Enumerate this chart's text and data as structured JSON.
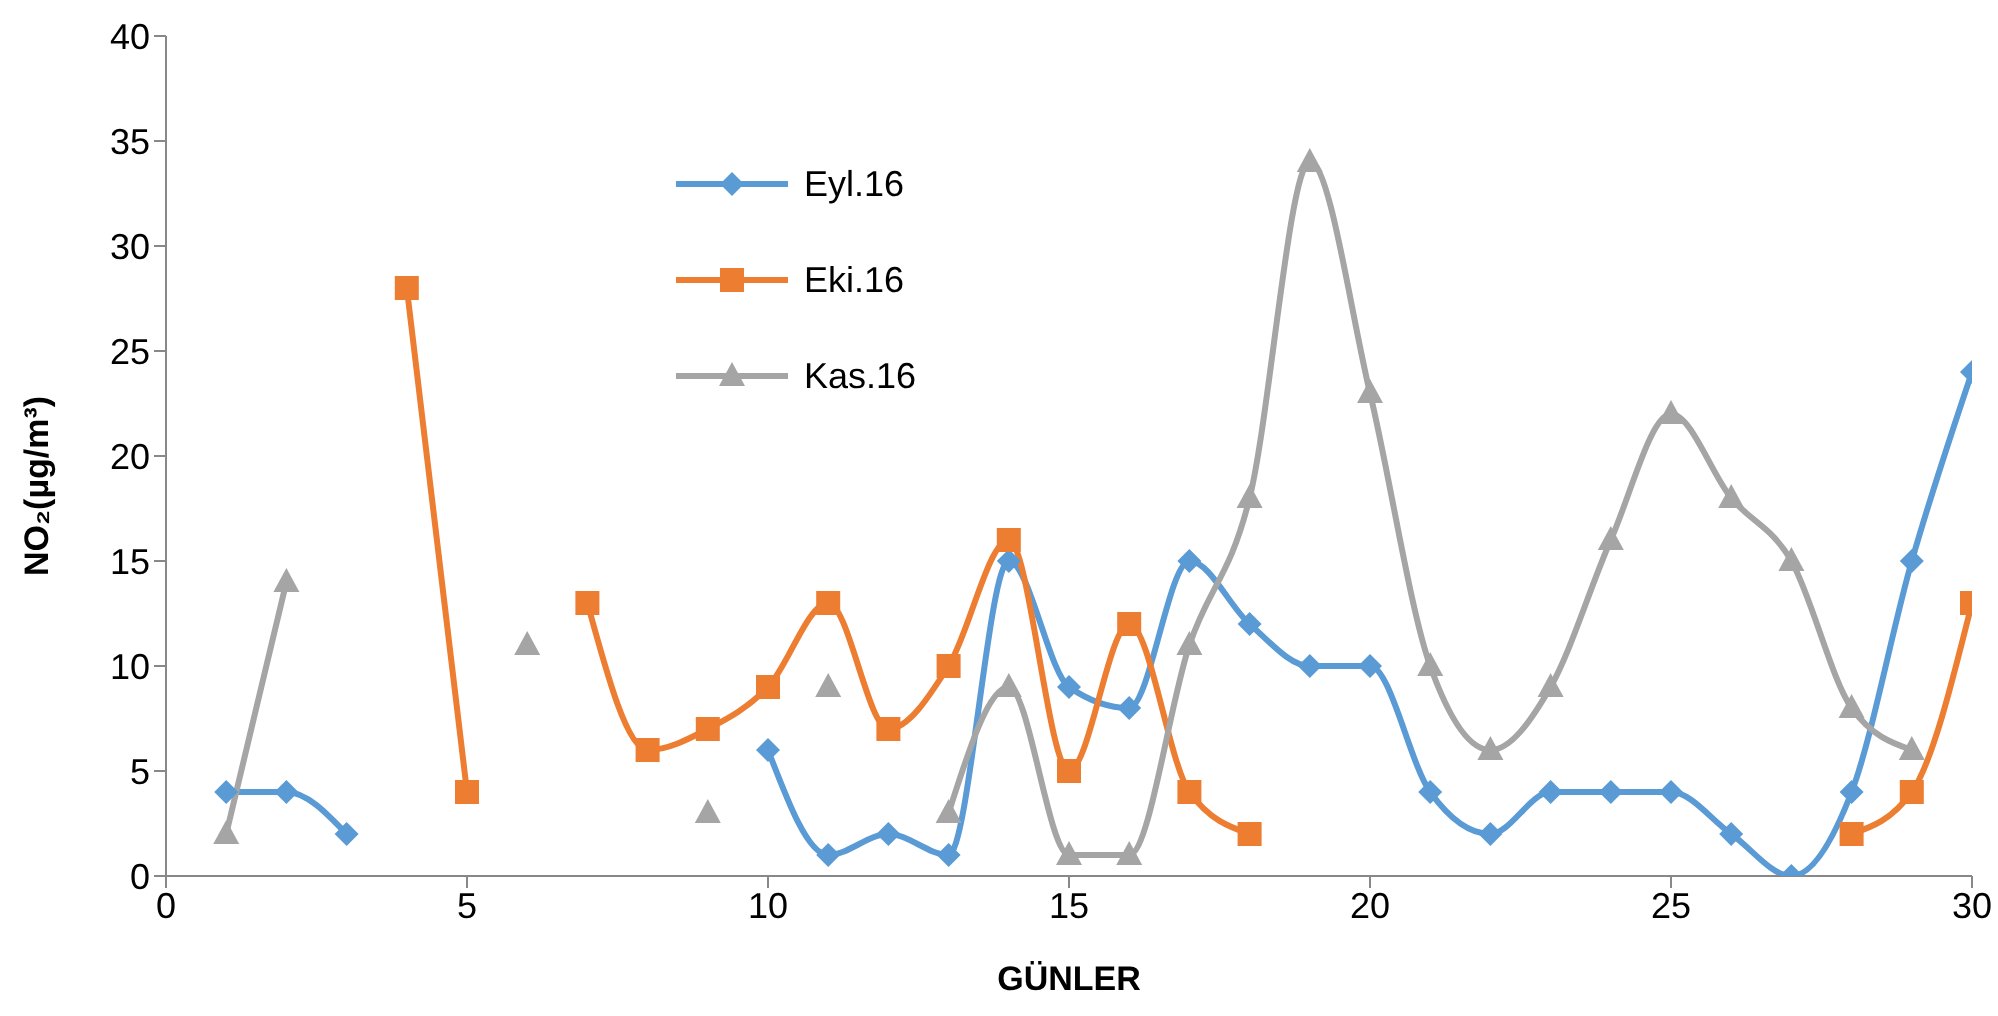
{
  "chart_data": {
    "type": "line",
    "xlabel": "GÜNLER",
    "ylabel": "NO₂(µg/m³)",
    "x": [
      1,
      2,
      3,
      4,
      5,
      6,
      7,
      8,
      9,
      10,
      11,
      12,
      13,
      14,
      15,
      16,
      17,
      18,
      19,
      20,
      21,
      22,
      23,
      24,
      25,
      26,
      27,
      28,
      29,
      30
    ],
    "xlim": [
      0,
      30
    ],
    "xticks": [
      0,
      5,
      10,
      15,
      20,
      25,
      30
    ],
    "ylim": [
      0,
      40
    ],
    "yticks": [
      0,
      5,
      10,
      15,
      20,
      25,
      30,
      35,
      40
    ],
    "grid": false,
    "legend": "top",
    "line_style": "solid",
    "series": [
      {
        "name": "Eyl.16",
        "color": "#5b9bd5",
        "marker": "diamond",
        "values": [
          4,
          4,
          2,
          null,
          null,
          null,
          null,
          null,
          null,
          6,
          1,
          2,
          1,
          15,
          9,
          8,
          15,
          12,
          10,
          10,
          4,
          2,
          4,
          4,
          4,
          2,
          0,
          4,
          15,
          24
        ]
      },
      {
        "name": "Eki.16",
        "color": "#ed7d31",
        "marker": "square",
        "values": [
          null,
          null,
          null,
          28,
          4,
          null,
          13,
          6,
          7,
          9,
          13,
          7,
          10,
          16,
          5,
          12,
          4,
          2,
          null,
          null,
          null,
          null,
          null,
          null,
          null,
          null,
          null,
          2,
          4,
          13
        ]
      },
      {
        "name": "Kas.16",
        "color": "#a5a5a5",
        "marker": "triangle",
        "values": [
          2,
          14,
          null,
          null,
          null,
          11,
          null,
          null,
          3,
          null,
          9,
          null,
          3,
          9,
          1,
          1,
          11,
          18,
          34,
          23,
          10,
          6,
          9,
          16,
          22,
          18,
          15,
          8,
          6,
          null
        ]
      }
    ]
  }
}
